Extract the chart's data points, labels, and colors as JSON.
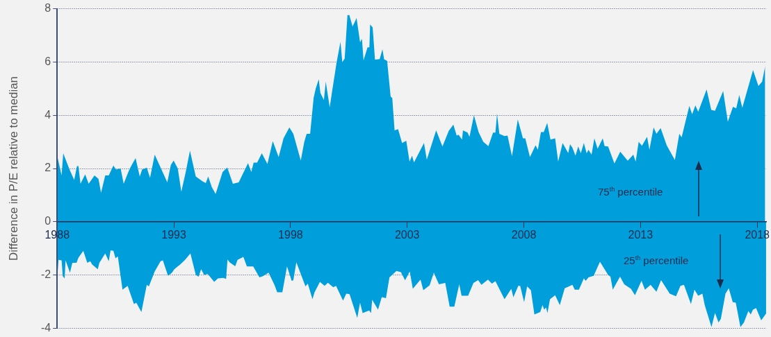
{
  "chart_data": {
    "type": "area",
    "ylabel": "Difference in P/E relative to median",
    "xlim": [
      1988,
      2018.4
    ],
    "xticks": [
      1988,
      1993,
      1998,
      2003,
      2008,
      2013,
      2018
    ],
    "ylim": [
      -4,
      8
    ],
    "yticks": [
      -4,
      -2,
      0,
      2,
      4,
      6,
      8
    ],
    "grid": "y",
    "annotations": [
      "75$^{th}$ percentile",
      "25$^{th}$ percentile"
    ],
    "series": [
      {
        "color": "#009fdb",
        "x": [
          1988.0,
          1988.19,
          1988.26,
          1988.53,
          1988.73,
          1988.85,
          1988.91,
          1989.0,
          1989.2,
          1989.35,
          1989.6,
          1989.77,
          1989.88,
          1990.06,
          1990.21,
          1990.41,
          1990.52,
          1990.72,
          1990.85,
          1991.05,
          1991.15,
          1991.36,
          1991.54,
          1991.64,
          1991.84,
          1991.98,
          1992.18,
          1992.72,
          1992.87,
          1992.99,
          1993.17,
          1993.32,
          1993.51,
          1993.69,
          1993.94,
          1994.23,
          1994.37,
          1994.47,
          1994.63,
          1994.79,
          1995.09,
          1995.29,
          1995.53,
          1995.78,
          1996.18,
          1996.32,
          1996.42,
          1996.57,
          1996.77,
          1997.01,
          1997.24,
          1997.49,
          1997.7,
          1997.95,
          1998.12,
          1998.44,
          1998.59,
          1998.69,
          1998.84,
          1998.99,
          1999.08,
          1999.21,
          1999.28,
          1999.43,
          1999.51,
          1999.68,
          1999.77,
          1999.97,
          2000.14,
          2000.22,
          2000.32,
          2000.44,
          2000.52,
          2000.66,
          2000.83,
          2000.98,
          2001.06,
          2001.13,
          2001.3,
          2001.38,
          2001.41,
          2001.52,
          2001.62,
          2001.82,
          2001.94,
          2002.01,
          2002.14,
          2002.29,
          2002.36,
          2002.46,
          2002.61,
          2002.78,
          2002.96,
          2003.1,
          2003.21,
          2003.29,
          2003.72,
          2003.84,
          2004.24,
          2004.51,
          2004.78,
          2004.98,
          2005.12,
          2005.2,
          2005.35,
          2005.39,
          2005.59,
          2005.67,
          2005.86,
          2006.06,
          2006.26,
          2006.48,
          2006.68,
          2006.78,
          2006.85,
          2006.95,
          2007.17,
          2007.3,
          2007.49,
          2007.74,
          2007.96,
          2008.06,
          2008.26,
          2008.5,
          2008.6,
          2008.73,
          2008.85,
          2009.0,
          2009.14,
          2009.34,
          2009.47,
          2009.66,
          2009.9,
          2009.98,
          2010.08,
          2010.21,
          2010.33,
          2010.44,
          2010.57,
          2010.69,
          2010.77,
          2010.9,
          2011.02,
          2011.16,
          2011.38,
          2011.46,
          2011.61,
          2011.88,
          2012.13,
          2012.45,
          2012.69,
          2012.79,
          2012.92,
          2013.06,
          2013.28,
          2013.38,
          2013.56,
          2013.68,
          2013.86,
          2014.12,
          2014.47,
          2014.66,
          2014.76,
          2015.09,
          2015.21,
          2015.35,
          2015.47,
          2015.83,
          2016.03,
          2016.19,
          2016.54,
          2016.74,
          2016.96,
          2017.1,
          2017.23,
          2017.36,
          2017.82,
          2018.05,
          2018.21,
          2018.34
        ],
        "values": [
          2.48,
          1.74,
          2.57,
          1.96,
          1.57,
          2.09,
          2.09,
          1.43,
          1.78,
          1.43,
          1.74,
          1.61,
          1.09,
          1.74,
          1.74,
          2.11,
          1.96,
          2.0,
          1.43,
          1.87,
          2.06,
          2.39,
          1.7,
          1.96,
          2.03,
          1.65,
          2.52,
          1.48,
          2.13,
          2.3,
          2.0,
          1.13,
          1.87,
          2.67,
          1.7,
          1.52,
          1.45,
          1.7,
          1.3,
          1.04,
          1.87,
          2.04,
          1.43,
          1.48,
          2.2,
          1.87,
          2.22,
          2.22,
          2.57,
          2.17,
          3.03,
          2.43,
          3.13,
          3.54,
          3.3,
          2.3,
          3.0,
          3.3,
          3.3,
          4.65,
          5.0,
          5.35,
          4.84,
          4.57,
          5.26,
          4.3,
          4.83,
          5.96,
          6.76,
          6.0,
          6.13,
          7.76,
          7.76,
          7.33,
          7.65,
          6.74,
          6.87,
          6.06,
          6.55,
          6.55,
          7.41,
          7.3,
          6.09,
          6.11,
          6.48,
          6.1,
          6.04,
          4.7,
          4.65,
          3.43,
          3.48,
          2.96,
          3.04,
          2.26,
          2.48,
          2.23,
          2.96,
          2.33,
          3.43,
          2.83,
          3.41,
          3.65,
          3.24,
          3.27,
          3.09,
          3.43,
          3.35,
          3.19,
          4.0,
          3.37,
          3.0,
          2.84,
          3.35,
          3.35,
          4.06,
          3.3,
          3.22,
          3.24,
          2.46,
          3.84,
          3.13,
          3.13,
          2.43,
          2.87,
          2.7,
          3.37,
          3.37,
          3.71,
          3.09,
          3.13,
          2.26,
          2.96,
          2.58,
          2.91,
          2.78,
          2.48,
          2.83,
          2.57,
          2.96,
          2.57,
          2.7,
          2.52,
          3.13,
          2.74,
          3.13,
          2.84,
          2.83,
          2.19,
          2.63,
          2.29,
          2.52,
          2.26,
          3.0,
          2.85,
          3.19,
          2.7,
          3.54,
          3.3,
          3.52,
          2.87,
          2.32,
          3.3,
          3.17,
          4.35,
          4.04,
          4.37,
          4.13,
          4.97,
          4.2,
          4.17,
          4.91,
          3.76,
          4.32,
          4.26,
          4.76,
          4.28,
          5.7,
          5.1,
          5.26,
          5.85
        ]
      },
      {
        "color": "#009fdb",
        "x": [
          1988.0,
          1988.06,
          1988.19,
          1988.24,
          1988.32,
          1988.36,
          1988.55,
          1988.65,
          1988.83,
          1988.91,
          1989.12,
          1989.29,
          1989.42,
          1989.5,
          1989.74,
          1989.81,
          1990.06,
          1990.21,
          1990.29,
          1990.41,
          1990.5,
          1990.6,
          1990.8,
          1991.02,
          1991.29,
          1991.39,
          1991.61,
          1991.84,
          1991.93,
          1992.18,
          1992.43,
          1992.53,
          1992.75,
          1992.92,
          1993.02,
          1993.27,
          1993.48,
          1993.71,
          1993.94,
          1994.06,
          1994.17,
          1994.3,
          1994.45,
          1994.73,
          1994.89,
          1995.12,
          1995.24,
          1995.3,
          1995.39,
          1995.63,
          1995.73,
          1995.98,
          1996.13,
          1996.4,
          1996.67,
          1996.82,
          1997.06,
          1997.31,
          1997.43,
          1997.65,
          1997.85,
          1998.05,
          1998.12,
          1998.25,
          1998.64,
          1998.74,
          1998.94,
          1999.03,
          1999.26,
          1999.46,
          1999.6,
          1999.83,
          1999.95,
          2000.25,
          2000.39,
          2000.53,
          2000.86,
          2000.98,
          2001.09,
          2001.37,
          2001.45,
          2001.5,
          2001.75,
          2001.91,
          2002.09,
          2002.24,
          2002.54,
          2002.73,
          2002.91,
          2003.11,
          2003.24,
          2003.57,
          2003.69,
          2003.96,
          2004.14,
          2004.36,
          2004.63,
          2004.82,
          2005.02,
          2005.23,
          2005.33,
          2005.61,
          2005.84,
          2006.04,
          2006.18,
          2006.46,
          2006.63,
          2006.78,
          2007.17,
          2007.46,
          2007.55,
          2007.76,
          2007.84,
          2008.01,
          2008.14,
          2008.3,
          2008.45,
          2008.7,
          2008.8,
          2008.87,
          2008.95,
          2009.01,
          2009.12,
          2009.34,
          2009.54,
          2009.75,
          2010.08,
          2010.18,
          2010.36,
          2010.57,
          2010.65,
          2010.77,
          2010.99,
          2011.26,
          2011.61,
          2011.71,
          2011.81,
          2012.12,
          2012.3,
          2012.59,
          2012.76,
          2013.04,
          2013.19,
          2013.43,
          2013.68,
          2013.88,
          2014.25,
          2014.52,
          2014.71,
          2014.86,
          2015.16,
          2015.31,
          2015.47,
          2015.65,
          2015.75,
          2016.04,
          2016.19,
          2016.34,
          2016.44,
          2016.64,
          2016.78,
          2016.95,
          2017.08,
          2017.28,
          2017.43,
          2017.62,
          2017.72,
          2017.82,
          2017.95,
          2018.17,
          2018.32,
          2018.38
        ],
        "values": [
          -2.13,
          -1.43,
          -1.45,
          -2.04,
          -2.13,
          -1.45,
          -1.91,
          -1.54,
          -1.54,
          -1.35,
          -1.09,
          -1.54,
          -1.48,
          -1.61,
          -1.78,
          -1.54,
          -1.19,
          -1.48,
          -1.07,
          -1.09,
          -1.37,
          -1.3,
          -2.55,
          -2.41,
          -3.09,
          -3.04,
          -3.39,
          -2.37,
          -2.43,
          -1.87,
          -1.48,
          -1.45,
          -2.03,
          -1.91,
          -1.78,
          -1.61,
          -1.43,
          -1.19,
          -2.0,
          -2.06,
          -1.78,
          -2.0,
          -1.96,
          -2.26,
          -2.13,
          -2.11,
          -2.15,
          -1.42,
          -1.52,
          -1.67,
          -1.43,
          -1.32,
          -1.68,
          -1.68,
          -2.09,
          -2.04,
          -1.91,
          -2.37,
          -2.65,
          -2.65,
          -1.68,
          -2.22,
          -2.2,
          -1.52,
          -2.43,
          -2.32,
          -2.91,
          -2.65,
          -2.26,
          -2.41,
          -2.29,
          -2.46,
          -2.41,
          -2.96,
          -2.7,
          -2.72,
          -3.61,
          -3.04,
          -3.43,
          -3.33,
          -3.43,
          -2.93,
          -3.3,
          -2.83,
          -2.87,
          -2.09,
          -1.85,
          -1.89,
          -2.2,
          -1.87,
          -2.52,
          -2.17,
          -2.57,
          -2.39,
          -1.91,
          -2.35,
          -2.3,
          -3.19,
          -3.19,
          -2.35,
          -2.78,
          -2.78,
          -2.3,
          -2.19,
          -2.37,
          -2.17,
          -2.32,
          -2.23,
          -2.91,
          -2.52,
          -2.84,
          -2.41,
          -2.41,
          -3.02,
          -2.43,
          -2.57,
          -3.48,
          -3.39,
          -3.13,
          -3.3,
          -3.22,
          -3.43,
          -2.91,
          -2.76,
          -3.13,
          -2.5,
          -2.37,
          -2.55,
          -2.55,
          -2.13,
          -2.22,
          -2.09,
          -2.03,
          -1.5,
          -2.0,
          -2.06,
          -2.55,
          -2.06,
          -2.35,
          -2.52,
          -2.76,
          -2.22,
          -2.55,
          -2.37,
          -2.63,
          -2.19,
          -2.7,
          -2.8,
          -2.41,
          -2.37,
          -3.09,
          -2.55,
          -2.78,
          -2.7,
          -3.13,
          -3.96,
          -3.42,
          -3.78,
          -3.65,
          -2.7,
          -2.5,
          -3.02,
          -3.04,
          -3.96,
          -3.78,
          -3.35,
          -3.48,
          -3.3,
          -3.24,
          -3.7,
          -3.52,
          -3.45
        ]
      }
    ]
  }
}
